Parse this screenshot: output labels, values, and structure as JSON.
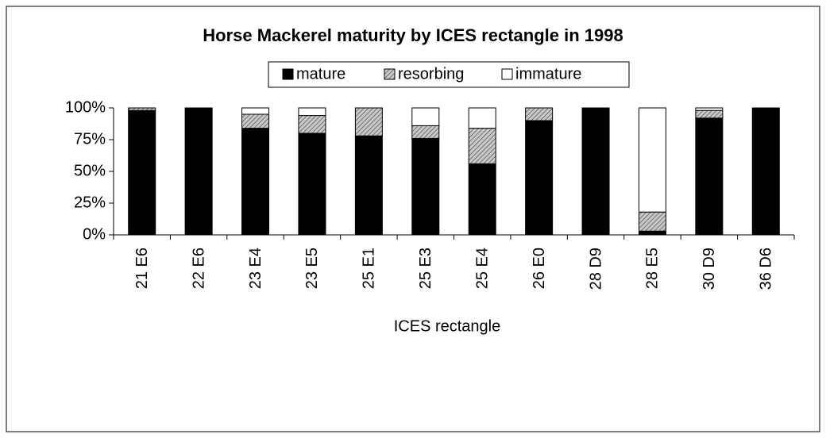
{
  "chart_data": {
    "type": "stacked_bar",
    "title": "Horse Mackerel maturity by ICES rectangle in 1998",
    "x_label": "ICES rectangle",
    "categories": [
      "21 E6",
      "22 E6",
      "23 E4",
      "23 E5",
      "25 E1",
      "25 E3",
      "25 E4",
      "26 E0",
      "28 D9",
      "28 E5",
      "30 D9",
      "36 D6"
    ],
    "series": [
      {
        "name": "mature",
        "color": "#000000",
        "values": [
          98,
          100,
          84,
          80,
          78,
          76,
          56,
          90,
          100,
          3,
          92,
          100
        ]
      },
      {
        "name": "resorbing",
        "color": "#888888",
        "hatch": true,
        "values": [
          2,
          0,
          11,
          14,
          22,
          10,
          28,
          10,
          0,
          15,
          6,
          0
        ]
      },
      {
        "name": "immature",
        "color": "#ffffff",
        "values": [
          0,
          0,
          5,
          6,
          0,
          14,
          16,
          0,
          0,
          82,
          2,
          0
        ]
      }
    ],
    "ylim": [
      0,
      100
    ],
    "yticks": [
      {
        "value": 0,
        "label": "0%"
      },
      {
        "value": 25,
        "label": "25%"
      },
      {
        "value": 50,
        "label": "50%"
      },
      {
        "value": 75,
        "label": "75%"
      },
      {
        "value": 100,
        "label": "100%"
      }
    ],
    "legend": "top"
  }
}
